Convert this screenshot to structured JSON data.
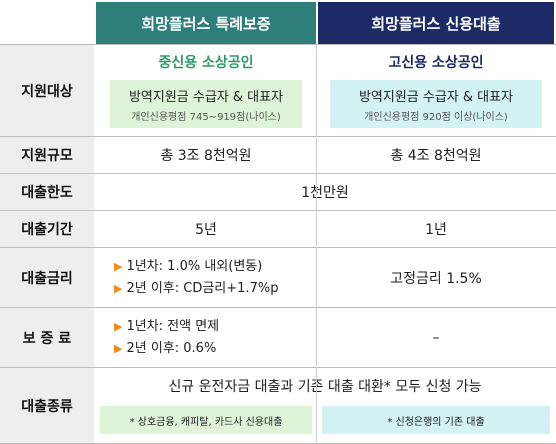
{
  "header": {
    "col1": "희망플러스 특례보증",
    "col2": "희망플러스 신용대출"
  },
  "colors": {
    "col1_header": "#2e7f7a",
    "col2_header": "#1e2a66",
    "col1_accent": "#2e9a6a",
    "col2_accent": "#1e2a66",
    "col1_box": "#dff3d8",
    "col2_box": "#d4f1f4",
    "bullet": "#f08a1c",
    "row_label_bg": "#eeeeee"
  },
  "rows": {
    "support_target": {
      "label": "지원대상",
      "col1_title": "중신용 소상공인",
      "col1_line1": "방역지원금 수급자 & 대표자",
      "col1_line2": "개인신용평점 745~919점(나이스)",
      "col2_title": "고신용 소상공인",
      "col2_line1": "방역지원금 수급자 & 대표자",
      "col2_line2": "개인신용평점 920점 이상(나이스)"
    },
    "scale": {
      "label": "지원규모",
      "col1": "총 3조 8천억원",
      "col2": "총 4조 8천억원"
    },
    "limit": {
      "label": "대출한도",
      "value": "1천만원"
    },
    "term": {
      "label": "대출기간",
      "col1": "5년",
      "col2": "1년"
    },
    "rate": {
      "label": "대출금리",
      "col1_item1": "1년차: 1.0% 내외(변동)",
      "col1_item2": "2년 이후: CD금리+1.7%p",
      "col2": "고정금리 1.5%"
    },
    "guarantee": {
      "label": "보 증 료",
      "col1_item1": "1년차: 전액 면제",
      "col1_item2": "2년 이후: 0.6%",
      "col2": "–"
    },
    "loan_type": {
      "label": "대출종류",
      "value": "신규 운전자금 대출과 기존 대출 대환* 모두 신청 가능",
      "col1_note": "* 상호금융, 캐피탈, 카드사 신용대출",
      "col2_note": "* 신청은행의 기존 대출"
    }
  }
}
